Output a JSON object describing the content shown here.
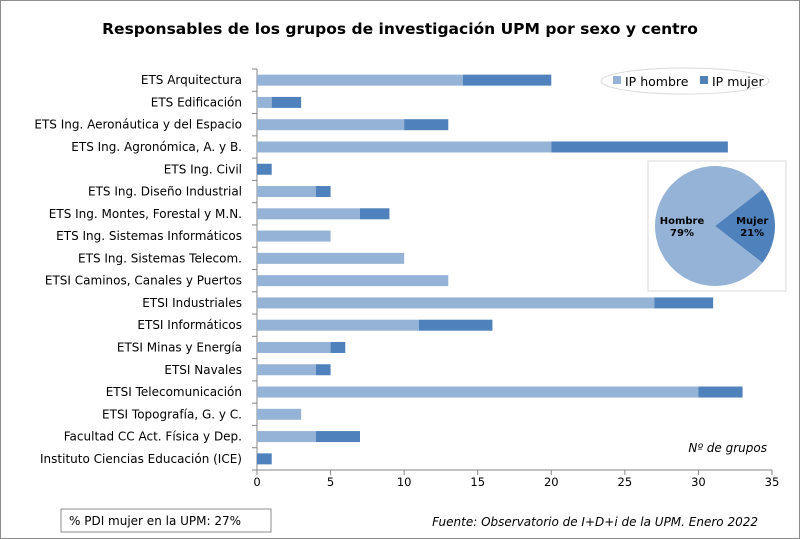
{
  "chart_data": [
    {
      "type": "bar",
      "orientation": "horizontal",
      "stacked": true,
      "title": "Responsables de los grupos de investigación UPM por sexo y centro",
      "xlabel": "Nº de grupos",
      "xlim": [
        0,
        35
      ],
      "xticks": [
        0,
        5,
        10,
        15,
        20,
        25,
        30,
        35
      ],
      "grid": false,
      "legend_position": "top-right",
      "categories": [
        "ETS Arquitectura",
        "ETS Edificación",
        "ETS Ing. Aeronáutica y del Espacio",
        "ETS Ing. Agronómica, A. y B.",
        "ETS Ing. Civil",
        "ETS Ing. Diseño Industrial",
        "ETS Ing. Montes, Forestal y M.N.",
        "ETS Ing. Sistemas Informáticos",
        "ETS Ing. Sistemas Telecom.",
        "ETSI Caminos, Canales y Puertos",
        "ETSI Industriales",
        "ETSI Informáticos",
        "ETSI Minas y Energía",
        "ETSI Navales",
        "ETSI Telecomunicación",
        "ETSI Topografía, G. y C.",
        "Facultad CC Act. Física y Dep.",
        "Instituto Ciencias Educación (ICE)"
      ],
      "series": [
        {
          "name": "IP hombre",
          "color": "#95b3d7",
          "values": [
            14,
            1,
            10,
            20,
            0,
            4,
            7,
            5,
            10,
            13,
            27,
            11,
            5,
            4,
            30,
            3,
            4,
            0
          ]
        },
        {
          "name": "IP mujer",
          "color": "#4f81bd",
          "values": [
            6,
            2,
            3,
            12,
            1,
            1,
            2,
            0,
            0,
            0,
            4,
            5,
            1,
            1,
            3,
            0,
            3,
            1
          ]
        }
      ]
    },
    {
      "type": "pie",
      "slices": [
        {
          "label": "Hombre",
          "value": 79,
          "display": "79%",
          "color": "#95b3d7"
        },
        {
          "label": "Mujer",
          "value": 21,
          "display": "21%",
          "color": "#4f81bd"
        }
      ]
    }
  ],
  "footer": {
    "pdi_note": "% PDI mujer en la UPM: 27%",
    "source": "Fuente: Observatorio de I+D+i de la UPM. Enero 2022"
  }
}
